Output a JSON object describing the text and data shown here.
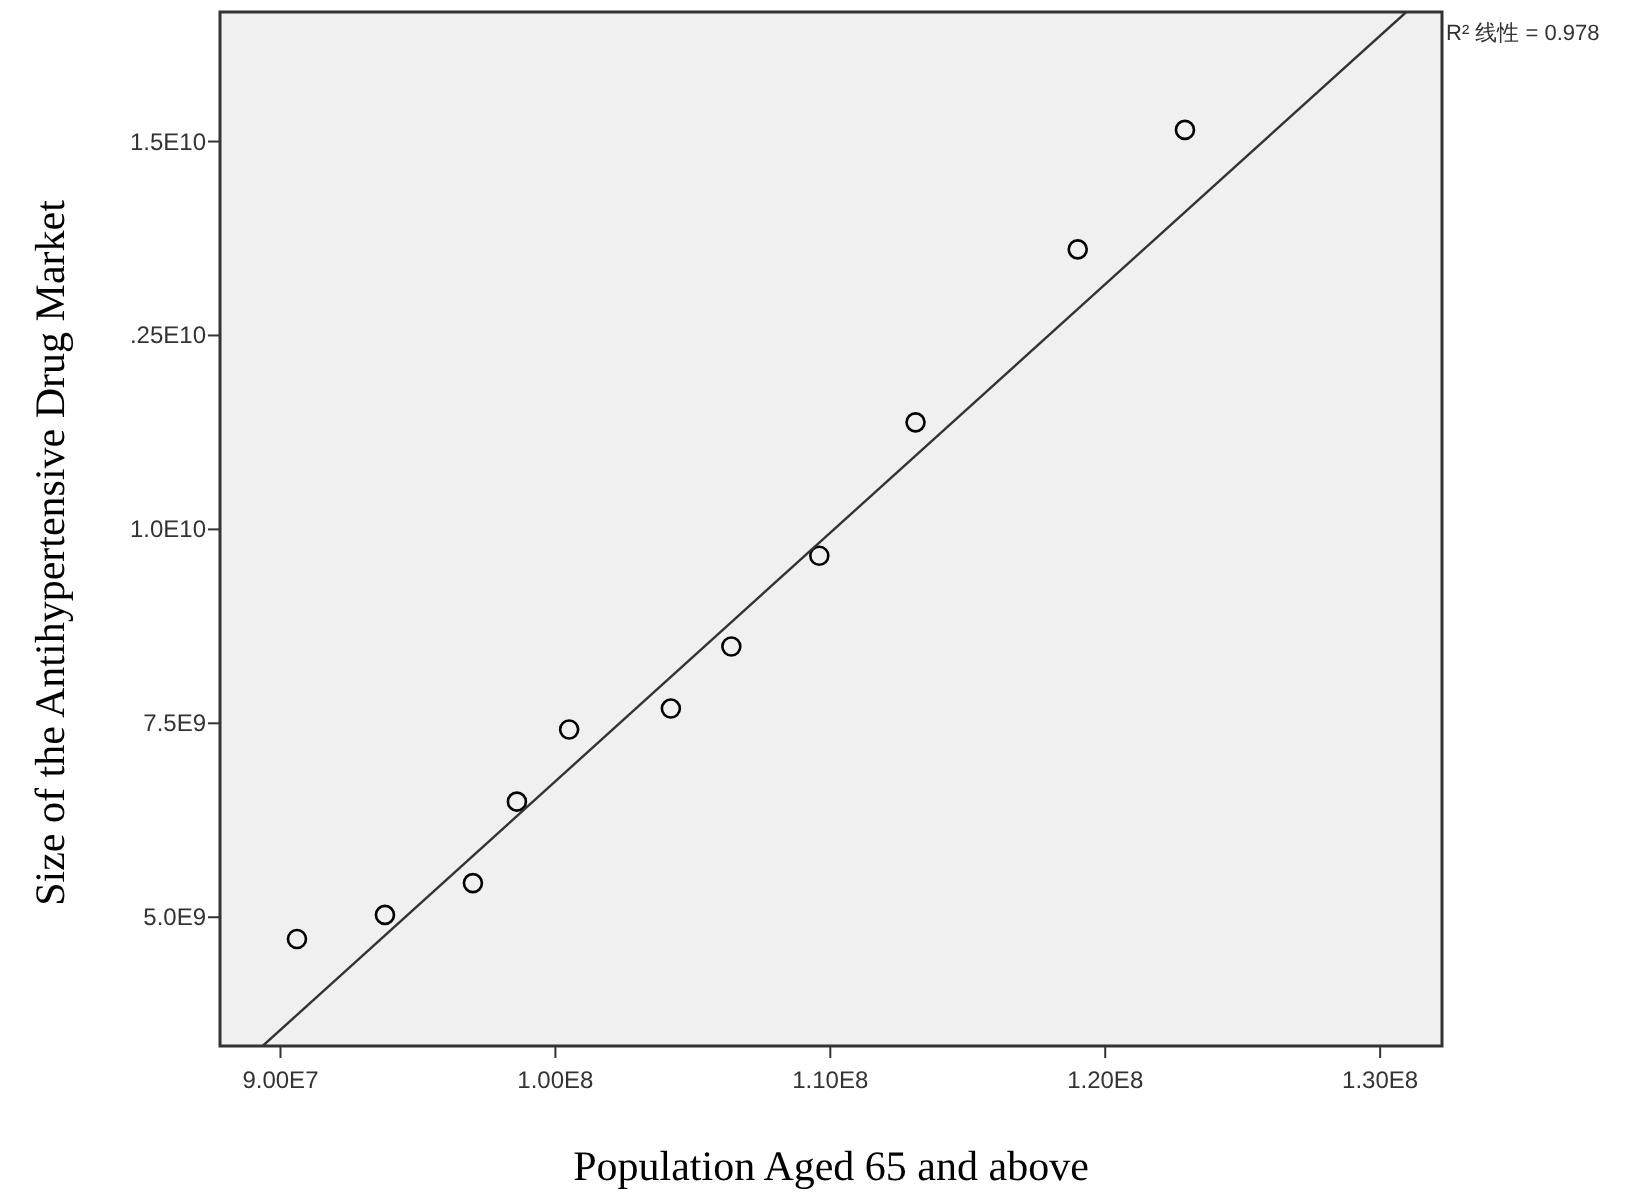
{
  "chart_data": {
    "type": "scatter",
    "xlabel": "Population Aged 65 and above",
    "ylabel": "Size of the Antihypertensive Drug Market",
    "grid": false,
    "xlim": [
      87800000,
      132250000
    ],
    "ylim": [
      3340000000,
      16670000000
    ],
    "xticks": [
      {
        "value": 90000000,
        "label": "9.00E7"
      },
      {
        "value": 100000000,
        "label": "1.00E8"
      },
      {
        "value": 110000000,
        "label": "1.10E8"
      },
      {
        "value": 120000000,
        "label": "1.20E8"
      },
      {
        "value": 130000000,
        "label": "1.30E8"
      }
    ],
    "yticks": [
      {
        "value": 5000000000,
        "label": "5.0E9"
      },
      {
        "value": 7500000000,
        "label": "7.5E9"
      },
      {
        "value": 10000000000,
        "label": "1.0E10"
      },
      {
        "value": 12500000000,
        "label": ".25E10"
      },
      {
        "value": 15000000000,
        "label": "1.5E10"
      }
    ],
    "series": [
      {
        "marker": "circle",
        "color": "#000000",
        "x": [
          90600000,
          93800000,
          97000000,
          98600000,
          100500000,
          104200000,
          106400000,
          109600000,
          113100000,
          119000000,
          122900000
        ],
        "values": [
          4720000000,
          5030000000,
          5440000000,
          6490000000,
          7420000000,
          7690000000,
          8490000000,
          9660000000,
          11380000000,
          13610000000,
          15150000000
        ]
      },
      {
        "type": "line",
        "marker": "none",
        "color": "#333333",
        "x": [
          89350000,
          130950000
        ],
        "values": [
          3340000000,
          16670000000
        ]
      }
    ],
    "annotations": [
      "R² 线性 = 0.978"
    ]
  }
}
